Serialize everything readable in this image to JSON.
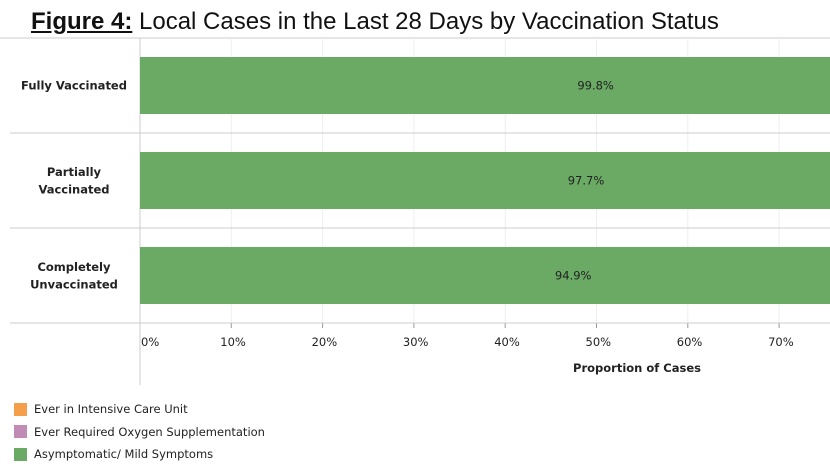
{
  "chart_data": {
    "type": "bar",
    "orientation": "horizontal",
    "stacked": true,
    "title_prefix": "Figure 4:",
    "title": "Local Cases in the Last 28 Days by Vaccination Status",
    "categories": [
      "Fully Vaccinated",
      "Partially Vaccinated",
      "Completely Unvaccinated"
    ],
    "category_lines": [
      [
        "Fully Vaccinated"
      ],
      [
        "Partially",
        "Vaccinated"
      ],
      [
        "Completely",
        "Unvaccinated"
      ]
    ],
    "series": [
      {
        "name": "Asymptomatic/ Mild Symptoms",
        "color": "#6aaa64",
        "values": [
          99.8,
          97.7,
          94.9
        ],
        "labels": [
          "99.8%",
          "97.7%",
          "94.9%"
        ]
      }
    ],
    "xlabel": "Proportion of Cases",
    "xticks": [
      0,
      10,
      20,
      30,
      40,
      50,
      60,
      70
    ],
    "xtick_labels": [
      "0%",
      "10%",
      "20%",
      "30%",
      "40%",
      "50%",
      "60%",
      "70%"
    ],
    "xlim_visible": [
      0,
      76
    ],
    "grid": true,
    "legend_position": "bottom-left",
    "legend": [
      {
        "label": "Ever in Intensive Care Unit",
        "color": "#f4a04a"
      },
      {
        "label": "Ever Required Oxygen Supplementation",
        "color": "#c08bb5"
      },
      {
        "label": "Asymptomatic/ Mild Symptoms",
        "color": "#6aaa64"
      }
    ]
  }
}
